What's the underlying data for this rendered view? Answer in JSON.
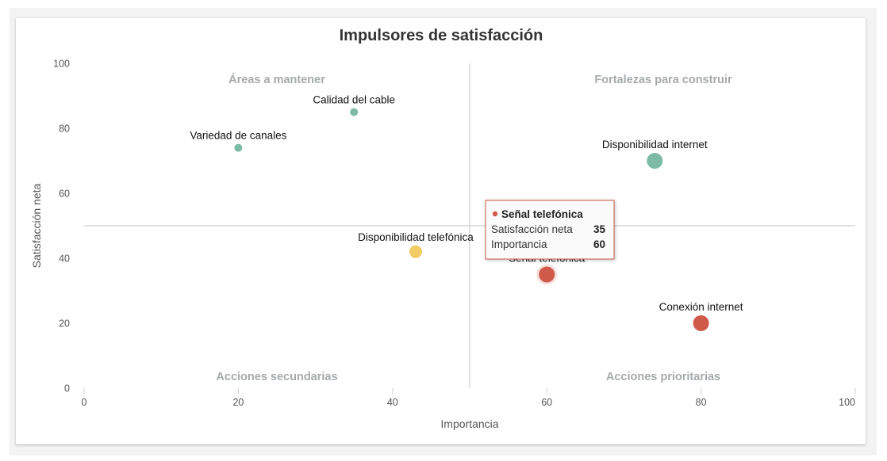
{
  "chart_data": {
    "type": "scatter",
    "title": "Impulsores de satisfacción",
    "xlabel": "Importancia",
    "ylabel": "Satisfacción neta",
    "xlim": [
      0,
      100
    ],
    "ylim": [
      0,
      100
    ],
    "xticks": [
      "0",
      "20",
      "40",
      "60",
      "80",
      "100"
    ],
    "yticks": [
      "0",
      "20",
      "40",
      "60",
      "80",
      "100"
    ],
    "grid": false,
    "quadrant_divider": {
      "x": 50,
      "y": 50
    },
    "quadrants": {
      "top_left": "Áreas a mantener",
      "top_right": "Fortalezas para construir",
      "bottom_left": "Acciones secundarias",
      "bottom_right": "Acciones prioritarias"
    },
    "points": [
      {
        "name": "Variedad de canales",
        "x": 20,
        "y": 74,
        "size": "small",
        "color": "#7dbba6"
      },
      {
        "name": "Calidad del cable",
        "x": 35,
        "y": 85,
        "size": "small",
        "color": "#7dbba6"
      },
      {
        "name": "Disponibilidad internet",
        "x": 74,
        "y": 70,
        "size": "large",
        "color": "#7dbba6"
      },
      {
        "name": "Disponibilidad telefónica",
        "x": 43,
        "y": 42,
        "size": "medium",
        "color": "#f2cb62"
      },
      {
        "name": "Señal telefónica",
        "x": 60,
        "y": 35,
        "size": "large",
        "color": "#cf5a4a"
      },
      {
        "name": "Conexión internet",
        "x": 80,
        "y": 20,
        "size": "large",
        "color": "#cf5a4a"
      }
    ],
    "tooltip": {
      "title": "Señal telefónica",
      "rows": [
        {
          "label": "Satisfacción neta",
          "value": "35"
        },
        {
          "label": "Importancia",
          "value": "60"
        }
      ],
      "color": "#cf5a4a"
    }
  }
}
